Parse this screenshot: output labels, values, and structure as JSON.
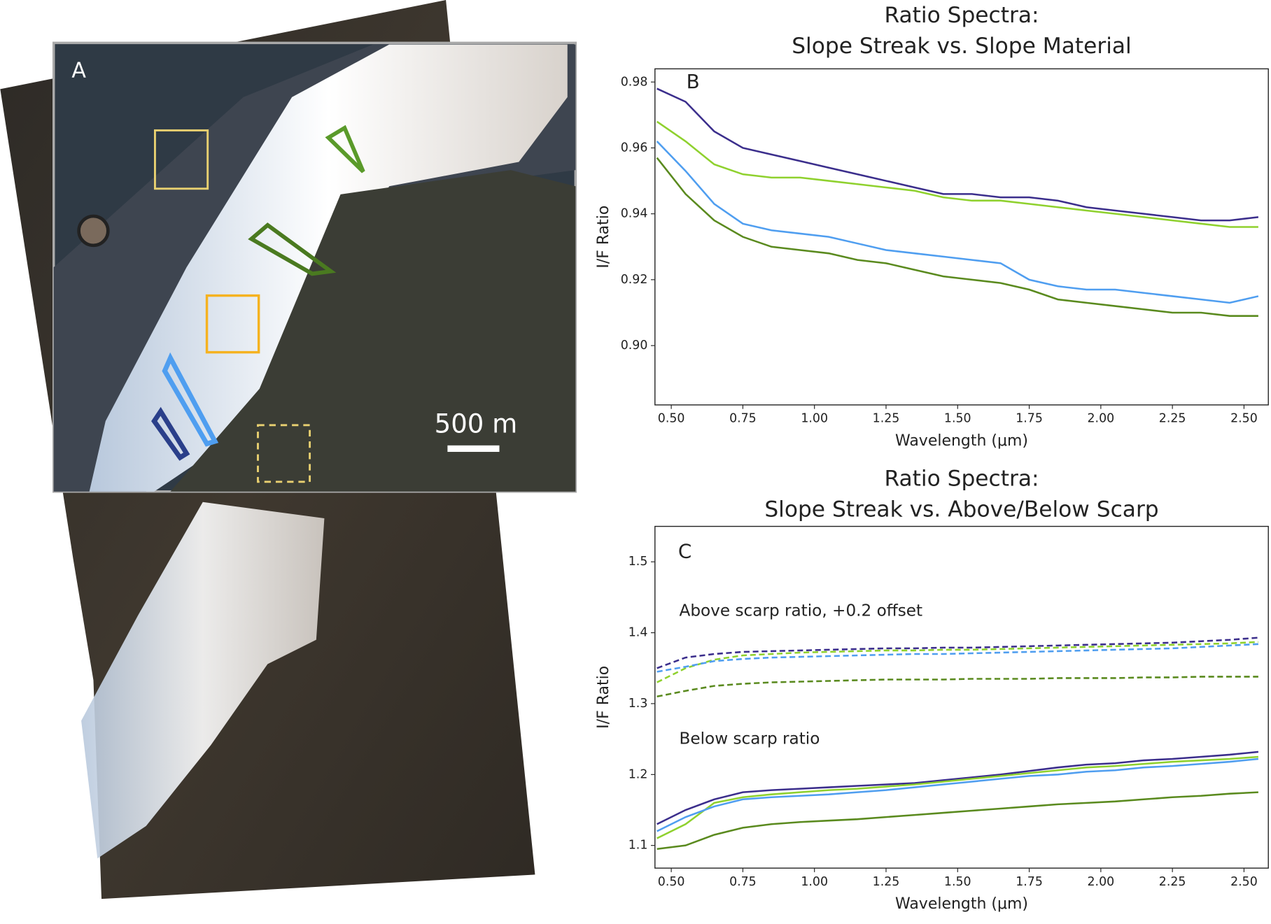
{
  "image_panel": {
    "label": "A",
    "scale_bar": "500 m"
  },
  "chart_data": [
    {
      "type": "line",
      "panel": "B",
      "title": [
        "Ratio Spectra:",
        "Slope Streak vs. Slope Material"
      ],
      "xlabel": "Wavelength (μm)",
      "ylabel": "I/F Ratio",
      "xlim": [
        0.443,
        2.585
      ],
      "ylim": [
        0.882,
        0.984
      ],
      "xticks": [
        {
          "value": 0.5,
          "label": "0.50"
        },
        {
          "value": 0.75,
          "label": "0.75"
        },
        {
          "value": 1.0,
          "label": "1.00"
        },
        {
          "value": 1.25,
          "label": "1.25"
        },
        {
          "value": 1.5,
          "label": "1.50"
        },
        {
          "value": 1.75,
          "label": "1.75"
        },
        {
          "value": 2.0,
          "label": "2.00"
        },
        {
          "value": 2.25,
          "label": "2.25"
        },
        {
          "value": 2.5,
          "label": "2.50"
        }
      ],
      "yticks": [
        {
          "value": 0.9,
          "label": "0.90"
        },
        {
          "value": 0.92,
          "label": "0.92"
        },
        {
          "value": 0.94,
          "label": "0.94"
        },
        {
          "value": 0.96,
          "label": "0.96"
        },
        {
          "value": 0.98,
          "label": "0.98"
        }
      ],
      "x": [
        0.45,
        0.55,
        0.65,
        0.75,
        0.85,
        0.95,
        1.05,
        1.15,
        1.25,
        1.35,
        1.45,
        1.55,
        1.65,
        1.75,
        1.85,
        1.95,
        2.05,
        2.15,
        2.25,
        2.35,
        2.45,
        2.55
      ],
      "series": [
        {
          "color": "#3b2e8c",
          "values": [
            0.978,
            0.974,
            0.965,
            0.96,
            0.958,
            0.956,
            0.954,
            0.952,
            0.95,
            0.948,
            0.946,
            0.946,
            0.945,
            0.945,
            0.944,
            0.942,
            0.941,
            0.94,
            0.939,
            0.938,
            0.938,
            0.939
          ]
        },
        {
          "color": "#8fd12e",
          "values": [
            0.968,
            0.962,
            0.955,
            0.952,
            0.951,
            0.951,
            0.95,
            0.949,
            0.948,
            0.947,
            0.945,
            0.944,
            0.944,
            0.943,
            0.942,
            0.941,
            0.94,
            0.939,
            0.938,
            0.937,
            0.936,
            0.936
          ]
        },
        {
          "color": "#4f9ef0",
          "values": [
            0.962,
            0.953,
            0.943,
            0.937,
            0.935,
            0.934,
            0.933,
            0.931,
            0.929,
            0.928,
            0.927,
            0.926,
            0.925,
            0.92,
            0.918,
            0.917,
            0.917,
            0.916,
            0.915,
            0.914,
            0.913,
            0.915
          ]
        },
        {
          "color": "#5a8a1e",
          "values": [
            0.957,
            0.946,
            0.938,
            0.933,
            0.93,
            0.929,
            0.928,
            0.926,
            0.925,
            0.923,
            0.921,
            0.92,
            0.919,
            0.917,
            0.914,
            0.913,
            0.912,
            0.911,
            0.91,
            0.91,
            0.909,
            0.909
          ]
        }
      ]
    },
    {
      "type": "line",
      "panel": "C",
      "title": [
        "Ratio Spectra:",
        "Slope Streak vs. Above/Below Scarp"
      ],
      "xlabel": "Wavelength (μm)",
      "ylabel": "I/F Ratio",
      "annotations": [
        "Above scarp ratio, +0.2 offset",
        "Below scarp ratio"
      ],
      "xlim": [
        0.443,
        2.585
      ],
      "ylim": [
        1.068,
        1.55
      ],
      "xticks": [
        {
          "value": 0.5,
          "label": "0.50"
        },
        {
          "value": 0.75,
          "label": "0.75"
        },
        {
          "value": 1.0,
          "label": "1.00"
        },
        {
          "value": 1.25,
          "label": "1.25"
        },
        {
          "value": 1.5,
          "label": "1.50"
        },
        {
          "value": 1.75,
          "label": "1.75"
        },
        {
          "value": 2.0,
          "label": "2.00"
        },
        {
          "value": 2.25,
          "label": "2.25"
        },
        {
          "value": 2.5,
          "label": "2.50"
        }
      ],
      "yticks": [
        1.1,
        1.2,
        1.3,
        1.4,
        1.5
      ],
      "x": [
        0.45,
        0.55,
        0.65,
        0.75,
        0.85,
        0.95,
        1.05,
        1.15,
        1.25,
        1.35,
        1.45,
        1.55,
        1.65,
        1.75,
        1.85,
        1.95,
        2.05,
        2.15,
        2.25,
        2.35,
        2.45,
        2.55
      ],
      "series": [
        {
          "color": "#3b2e8c",
          "dashed": true,
          "values": [
            1.35,
            1.365,
            1.37,
            1.373,
            1.374,
            1.375,
            1.376,
            1.377,
            1.378,
            1.378,
            1.379,
            1.379,
            1.38,
            1.381,
            1.382,
            1.383,
            1.384,
            1.385,
            1.386,
            1.388,
            1.39,
            1.393
          ]
        },
        {
          "color": "#8fd12e",
          "dashed": true,
          "values": [
            1.33,
            1.35,
            1.362,
            1.368,
            1.37,
            1.372,
            1.373,
            1.374,
            1.375,
            1.375,
            1.376,
            1.376,
            1.377,
            1.378,
            1.379,
            1.38,
            1.381,
            1.382,
            1.383,
            1.384,
            1.385,
            1.387
          ]
        },
        {
          "color": "#4f9ef0",
          "dashed": true,
          "values": [
            1.345,
            1.352,
            1.36,
            1.363,
            1.365,
            1.366,
            1.367,
            1.368,
            1.369,
            1.37,
            1.37,
            1.371,
            1.372,
            1.373,
            1.374,
            1.375,
            1.376,
            1.377,
            1.378,
            1.38,
            1.382,
            1.384
          ]
        },
        {
          "color": "#5a8a1e",
          "dashed": true,
          "values": [
            1.31,
            1.318,
            1.325,
            1.328,
            1.33,
            1.331,
            1.332,
            1.333,
            1.334,
            1.334,
            1.334,
            1.335,
            1.335,
            1.335,
            1.336,
            1.336,
            1.336,
            1.337,
            1.337,
            1.338,
            1.338,
            1.338
          ]
        },
        {
          "color": "#3b2e8c",
          "values": [
            1.13,
            1.15,
            1.165,
            1.175,
            1.178,
            1.18,
            1.182,
            1.184,
            1.186,
            1.188,
            1.192,
            1.196,
            1.2,
            1.205,
            1.21,
            1.214,
            1.216,
            1.22,
            1.222,
            1.225,
            1.228,
            1.232
          ]
        },
        {
          "color": "#8fd12e",
          "values": [
            1.11,
            1.13,
            1.16,
            1.168,
            1.172,
            1.175,
            1.178,
            1.18,
            1.183,
            1.186,
            1.19,
            1.194,
            1.198,
            1.202,
            1.206,
            1.21,
            1.212,
            1.215,
            1.218,
            1.22,
            1.222,
            1.225
          ]
        },
        {
          "color": "#4f9ef0",
          "values": [
            1.12,
            1.14,
            1.155,
            1.165,
            1.168,
            1.17,
            1.172,
            1.175,
            1.178,
            1.182,
            1.186,
            1.19,
            1.194,
            1.198,
            1.2,
            1.204,
            1.206,
            1.21,
            1.212,
            1.215,
            1.218,
            1.222
          ]
        },
        {
          "color": "#5a8a1e",
          "values": [
            1.095,
            1.1,
            1.115,
            1.125,
            1.13,
            1.133,
            1.135,
            1.137,
            1.14,
            1.143,
            1.146,
            1.149,
            1.152,
            1.155,
            1.158,
            1.16,
            1.162,
            1.165,
            1.168,
            1.17,
            1.173,
            1.175
          ]
        }
      ]
    }
  ]
}
